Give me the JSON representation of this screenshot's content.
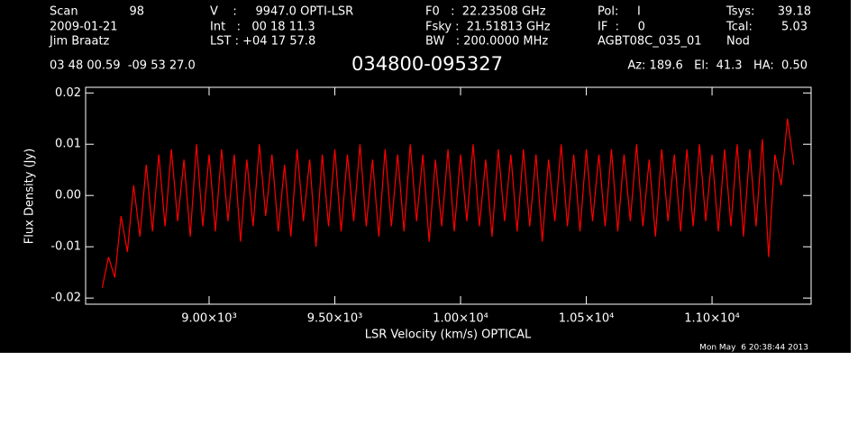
{
  "chart_data": {
    "type": "line",
    "header": [
      "Scan",
      "98",
      "V    :     9947.0 OPTI-LSR",
      "F0   :  22.23508 GHz",
      "Pol:     I",
      "Tsys:",
      "39.18",
      "2009-01-21",
      "Int   :   00 18 11.3",
      "Fsky :  21.51813 GHz",
      "IF  :     0",
      "Tcal:",
      "5.03",
      "Jim Braatz",
      "LST : +04 17 57.8",
      "BW   : 200.0000 MHz",
      "AGBT08C_035_01",
      "Nod",
      "03 48 00.59  -09 53 27.0",
      "Az: 189.6   El:  41.3   HA:  0.50"
    ],
    "title": "034800-095327",
    "x_label": "LSR Velocity (km/s) OPTICAL",
    "y_label": "Flux Density (Jy)",
    "timestamp": "Mon May  6 20:38:44 2013",
    "xlim": [
      8509,
      11394
    ],
    "ylim": [
      -0.0212,
      0.0211
    ],
    "xticks": [
      {
        "value": 9000,
        "label": "9.00×10³"
      },
      {
        "value": 9500,
        "label": "9.50×10³"
      },
      {
        "value": 10000,
        "label": "1.00×10⁴"
      },
      {
        "value": 10500,
        "label": "1.05×10⁴"
      },
      {
        "value": 11000,
        "label": "1.10×10⁴"
      }
    ],
    "yticks": [
      -0.02,
      -0.01,
      {
        "value": 0,
        "label": "0.00"
      },
      0.01,
      0.02
    ],
    "series": [
      {
        "name": "spectrum",
        "color": "#ff0000",
        "x": [
          8575,
          8600,
          8625,
          8650,
          8675,
          8700,
          8725,
          8750,
          8775,
          8800,
          8825,
          8850,
          8875,
          8900,
          8925,
          8950,
          8975,
          9000,
          9025,
          9050,
          9075,
          9100,
          9125,
          9150,
          9175,
          9200,
          9225,
          9250,
          9275,
          9300,
          9325,
          9350,
          9375,
          9400,
          9425,
          9450,
          9475,
          9500,
          9525,
          9550,
          9575,
          9600,
          9625,
          9650,
          9675,
          9700,
          9725,
          9750,
          9775,
          9800,
          9825,
          9850,
          9875,
          9900,
          9925,
          9950,
          9975,
          10000,
          10025,
          10050,
          10075,
          10100,
          10125,
          10150,
          10175,
          10200,
          10225,
          10250,
          10275,
          10300,
          10325,
          10350,
          10375,
          10400,
          10425,
          10450,
          10475,
          10500,
          10525,
          10550,
          10575,
          10600,
          10625,
          10650,
          10675,
          10700,
          10725,
          10750,
          10775,
          10800,
          10825,
          10850,
          10875,
          10900,
          10925,
          10950,
          10975,
          11000,
          11025,
          11050,
          11075,
          11100,
          11125,
          11150,
          11175,
          11200,
          11225,
          11250,
          11275,
          11300,
          11325
        ],
        "values": [
          -0.018,
          -0.012,
          -0.016,
          -0.004,
          -0.011,
          0.002,
          -0.008,
          0.006,
          -0.007,
          0.008,
          -0.006,
          0.009,
          -0.005,
          0.007,
          -0.008,
          0.01,
          -0.006,
          0.008,
          -0.007,
          0.009,
          -0.005,
          0.008,
          -0.009,
          0.007,
          -0.006,
          0.01,
          -0.004,
          0.008,
          -0.007,
          0.006,
          -0.008,
          0.009,
          -0.005,
          0.007,
          -0.01,
          0.008,
          -0.006,
          0.009,
          -0.007,
          0.008,
          -0.005,
          0.01,
          -0.006,
          0.007,
          -0.008,
          0.009,
          -0.006,
          0.008,
          -0.007,
          0.01,
          -0.005,
          0.008,
          -0.009,
          0.007,
          -0.006,
          0.009,
          -0.007,
          0.008,
          -0.005,
          0.01,
          -0.006,
          0.007,
          -0.008,
          0.009,
          -0.005,
          0.008,
          -0.007,
          0.009,
          -0.006,
          0.008,
          -0.009,
          0.007,
          -0.005,
          0.01,
          -0.006,
          0.008,
          -0.007,
          0.009,
          -0.005,
          0.008,
          -0.006,
          0.009,
          -0.007,
          0.008,
          -0.005,
          0.01,
          -0.006,
          0.007,
          -0.008,
          0.009,
          -0.005,
          0.008,
          -0.007,
          0.009,
          -0.006,
          0.01,
          -0.005,
          0.008,
          -0.007,
          0.009,
          -0.006,
          0.01,
          -0.008,
          0.009,
          -0.006,
          0.011,
          -0.012,
          0.008,
          0.002,
          0.015,
          0.006
        ]
      }
    ]
  }
}
